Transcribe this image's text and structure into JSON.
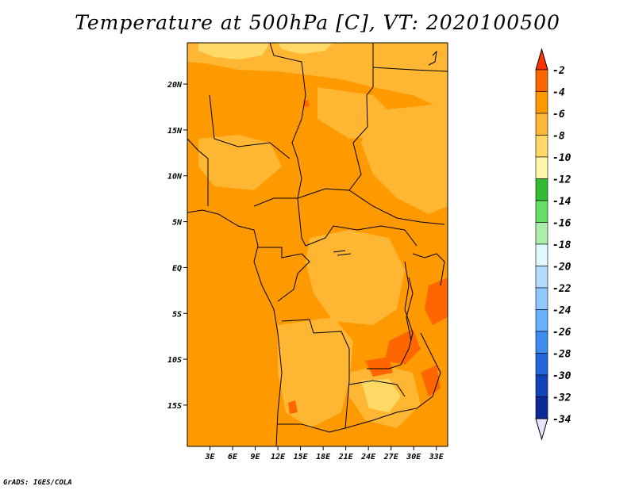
{
  "title": "Temperature at 500hPa [C], VT: 2020100500",
  "credit": "GrADS: IGES/COLA",
  "chart_data": {
    "type": "heatmap",
    "variable": "Temperature at 500hPa",
    "units": "C",
    "valid_time": "2020100500",
    "lon_range": [
      0,
      34.5
    ],
    "lat_range": [
      -19.5,
      24.5
    ],
    "x_ticks": [
      "3E",
      "6E",
      "9E",
      "12E",
      "15E",
      "18E",
      "21E",
      "24E",
      "27E",
      "30E",
      "33E"
    ],
    "y_ticks": [
      "20N",
      "15N",
      "10N",
      "5N",
      "EQ",
      "5S",
      "10S",
      "15S"
    ],
    "colorbar": {
      "labels": [
        "-2",
        "-4",
        "-6",
        "-8",
        "-10",
        "-12",
        "-14",
        "-16",
        "-18",
        "-20",
        "-22",
        "-24",
        "-26",
        "-28",
        "-30",
        "-32",
        "-34"
      ],
      "colors": [
        "#ff3300",
        "#ff6600",
        "#ff9900",
        "#ffb733",
        "#ffd966",
        "#fff5aa",
        "#33bb33",
        "#66dd66",
        "#aaeeaa",
        "#e0f8ff",
        "#b3dcff",
        "#8ec8ff",
        "#66b0ff",
        "#3d8df0",
        "#2266dd",
        "#1144bb",
        "#0a2a99",
        "#000a66",
        "#e8e4ff"
      ]
    },
    "field_summary": {
      "dominant": "-6 to -4",
      "north_edge": "-8 to -6 and -10 to -8",
      "interior_warm_pockets": "-4 to -2"
    }
  }
}
